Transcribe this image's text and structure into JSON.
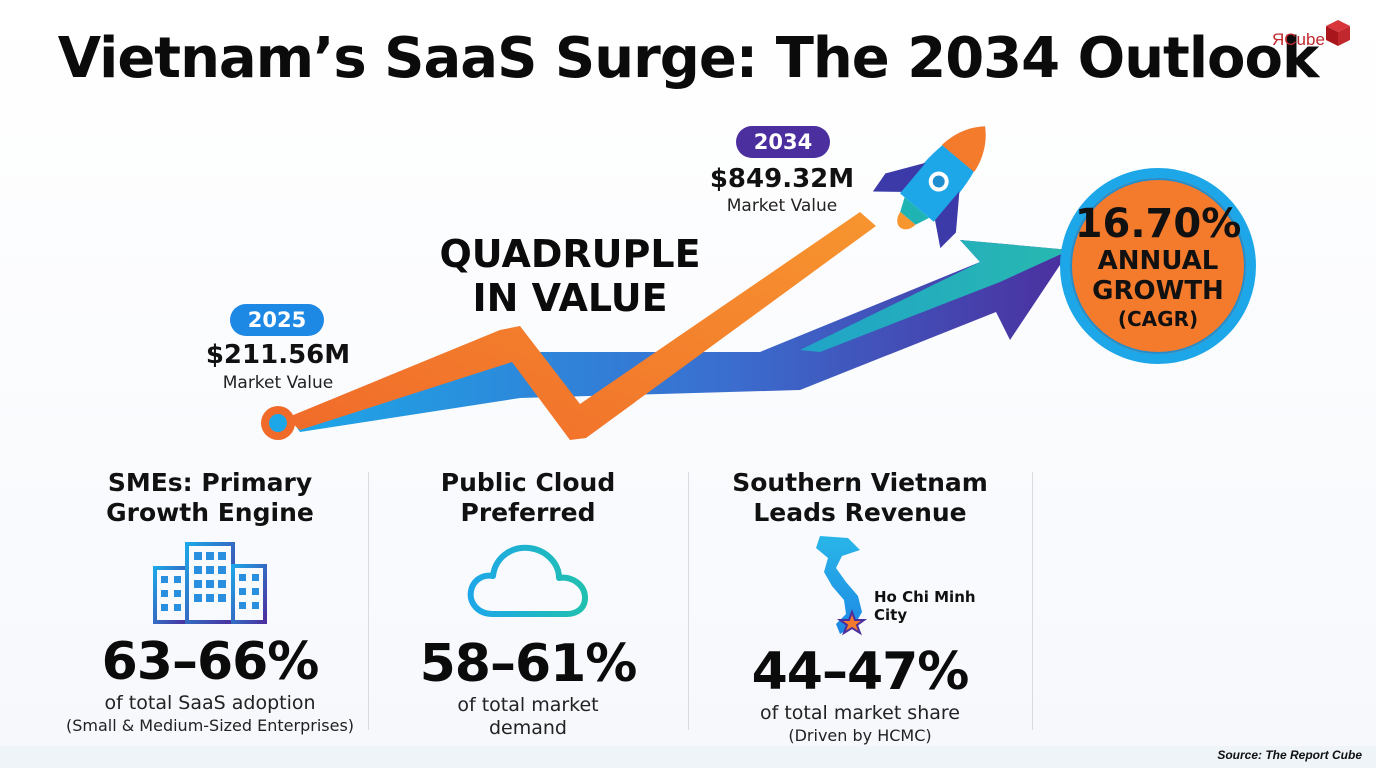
{
  "title": "Vietnam’s SaaS Surge: The 2034 Outlook",
  "logo": {
    "text": "ЯCube"
  },
  "start": {
    "year": "2025",
    "value": "$211.56M",
    "label": "Market Value"
  },
  "end": {
    "year": "2034",
    "value": "$849.32M",
    "label": "Market Value"
  },
  "headline": "QUADRUPLE\nIN VALUE",
  "cagr": {
    "percent": "16.70%",
    "line1": "ANNUAL",
    "line2": "GROWTH",
    "line3": "(CAGR)"
  },
  "stats": [
    {
      "heading": "SMEs: Primary\nGrowth Engine",
      "icon": "buildings-icon",
      "value": "63–66%",
      "description": "of total SaaS adoption",
      "note": "(Small & Medium-Sized Enterprises)"
    },
    {
      "heading": "Public Cloud\nPreferred",
      "icon": "cloud-icon",
      "value": "58–61%",
      "description": "of total market\ndemand",
      "note": ""
    },
    {
      "heading": "Southern Vietnam\nLeads Revenue",
      "icon": "vietnam-map-icon",
      "map_label": "Ho Chi Minh\nCity",
      "value": "44–47%",
      "description": "of total market share",
      "note": "(Driven by HCMC)"
    }
  ],
  "source": "Source: The Report Cube",
  "colors": {
    "orange": "#f47a2c",
    "blue": "#1da7e8",
    "purple": "#4b2f9e",
    "teal": "#1fb3b3",
    "pill_2025": "#1e88e5",
    "pill_2034": "#4b2f9e"
  }
}
